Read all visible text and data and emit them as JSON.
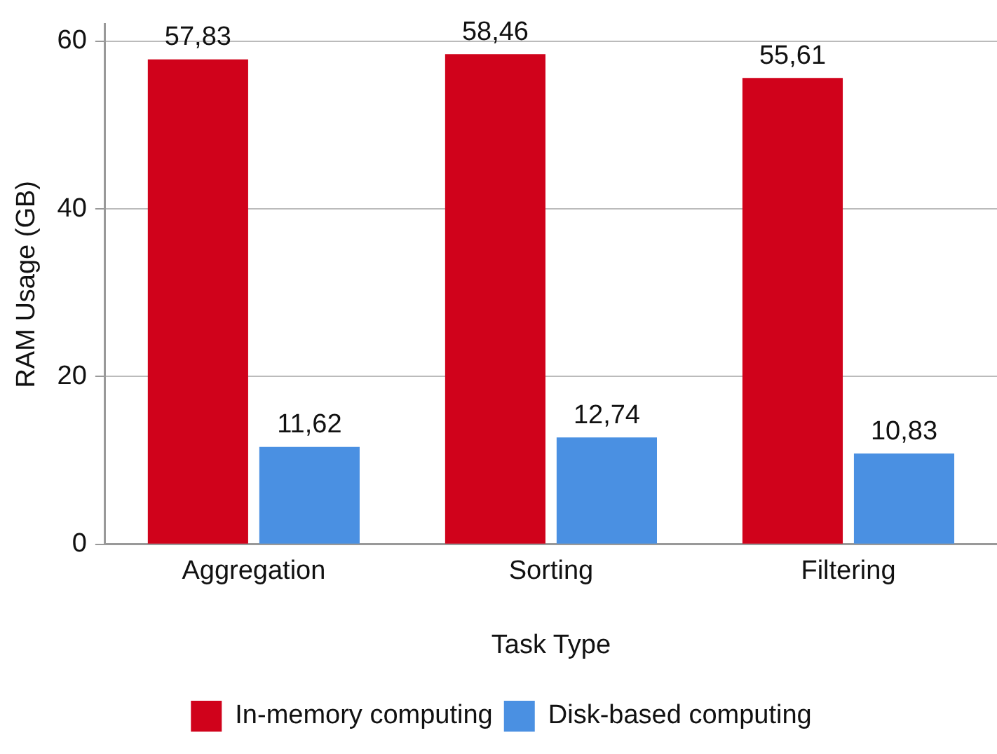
{
  "chart_data": {
    "type": "bar",
    "xlabel": "Task Type",
    "ylabel": "RAM Usage (GB)",
    "categories": [
      "Aggregation",
      "Sorting",
      "Filtering"
    ],
    "series": [
      {
        "name": "In-memory computing",
        "color": "#d0021b",
        "values": [
          57.83,
          58.46,
          55.61
        ],
        "value_labels": [
          "57,83",
          "58,46",
          "55,61"
        ]
      },
      {
        "name": "Disk-based computing",
        "color": "#4a90e2",
        "values": [
          11.62,
          12.74,
          10.83
        ],
        "value_labels": [
          "11,62",
          "12,74",
          "10,83"
        ]
      }
    ],
    "ylim": [
      0,
      62
    ],
    "yticks": [
      0,
      20,
      40,
      60
    ],
    "grid": "y",
    "legend": "bottom"
  }
}
